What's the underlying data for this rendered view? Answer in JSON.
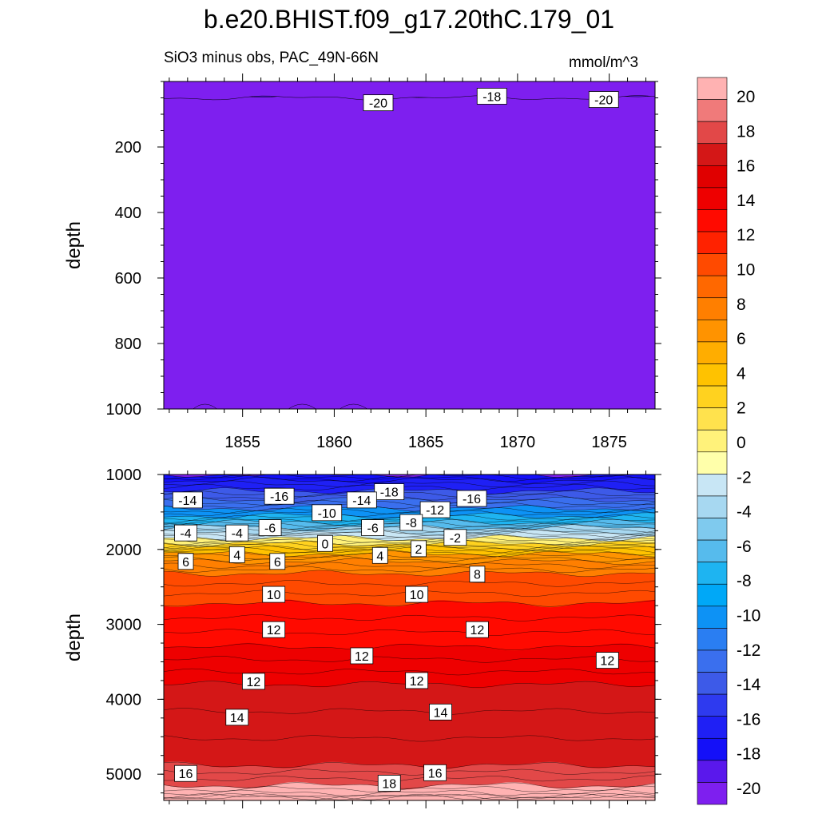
{
  "title": "b.e20.BHIST.f09_g17.20thC.179_01",
  "subtitle": "SiO3 minus obs, PAC_49N-66N",
  "units": "mmol/m^3",
  "colors": {
    "background": "#ffffff",
    "frame": "#000000"
  },
  "chart_data": [
    {
      "type": "contour",
      "panel": "top",
      "title": "SiO3 minus obs, PAC_49N-66N",
      "ylabel": "depth",
      "xlabel": "",
      "xlim": [
        1850.7,
        1877.5
      ],
      "ylim": [
        1000,
        0
      ],
      "y_inverted": true,
      "xticks": [
        1855,
        1860,
        1865,
        1870,
        1875
      ],
      "xtick_labels": [
        "1855",
        "1860",
        "1865",
        "1870",
        "1875"
      ],
      "yticks": [
        200,
        400,
        600,
        800,
        1000
      ],
      "ytick_labels": [
        "200",
        "400",
        "600",
        "800",
        "1000"
      ],
      "layers": [
        {
          "level": -20,
          "top": 0,
          "bottom": 1000,
          "note": "values at or below -20"
        },
        {
          "level": -18,
          "top": 0,
          "bottom": 55,
          "note": "thin band of -16 to -19 near surface"
        }
      ],
      "contour_labels": [
        {
          "x": 1862.4,
          "depth": 65,
          "text": "-20"
        },
        {
          "x": 1868.6,
          "depth": 45,
          "text": "-18"
        },
        {
          "x": 1874.7,
          "depth": 55,
          "text": "-20"
        }
      ]
    },
    {
      "type": "contour",
      "panel": "bottom",
      "ylabel": "depth",
      "xlabel": "",
      "xlim": [
        1850.7,
        1877.5
      ],
      "ylim": [
        5350,
        1000
      ],
      "y_inverted": true,
      "xticks": [
        1855,
        1860,
        1865,
        1870,
        1875
      ],
      "yticks": [
        1000,
        2000,
        3000,
        4000,
        5000
      ],
      "ytick_labels": [
        "1000",
        "2000",
        "3000",
        "4000",
        "5000"
      ],
      "level_depths": [
        {
          "level": -20,
          "depth": 1000
        },
        {
          "level": -18,
          "depth": 1080
        },
        {
          "level": -16,
          "depth": 1220
        },
        {
          "level": -14,
          "depth": 1340
        },
        {
          "level": -12,
          "depth": 1450
        },
        {
          "level": -10,
          "depth": 1550
        },
        {
          "level": -8,
          "depth": 1640
        },
        {
          "level": -6,
          "depth": 1710
        },
        {
          "level": -4,
          "depth": 1780
        },
        {
          "level": -2,
          "depth": 1850
        },
        {
          "level": 0,
          "depth": 1920
        },
        {
          "level": 2,
          "depth": 1985
        },
        {
          "level": 4,
          "depth": 2060
        },
        {
          "level": 6,
          "depth": 2160
        },
        {
          "level": 8,
          "depth": 2320
        },
        {
          "level": 10,
          "depth": 2720
        },
        {
          "level": 12,
          "depth": 3300
        },
        {
          "level": 14,
          "depth": 3800
        },
        {
          "level": 16,
          "depth": 4880
        },
        {
          "level": 18,
          "depth": 5150
        },
        {
          "level": 20,
          "depth": 5300
        }
      ],
      "contour_labels": [
        {
          "x": 1852.0,
          "depth": 1340,
          "text": "-14"
        },
        {
          "x": 1857.0,
          "depth": 1290,
          "text": "-16"
        },
        {
          "x": 1863.0,
          "depth": 1230,
          "text": "-18"
        },
        {
          "x": 1861.5,
          "depth": 1340,
          "text": "-14"
        },
        {
          "x": 1867.5,
          "depth": 1320,
          "text": "-16"
        },
        {
          "x": 1859.6,
          "depth": 1510,
          "text": "-10"
        },
        {
          "x": 1865.5,
          "depth": 1470,
          "text": "-12"
        },
        {
          "x": 1864.2,
          "depth": 1640,
          "text": "-8"
        },
        {
          "x": 1851.9,
          "depth": 1780,
          "text": "-4"
        },
        {
          "x": 1854.7,
          "depth": 1780,
          "text": "-4"
        },
        {
          "x": 1856.5,
          "depth": 1710,
          "text": "-6"
        },
        {
          "x": 1862.1,
          "depth": 1710,
          "text": "-6"
        },
        {
          "x": 1866.6,
          "depth": 1840,
          "text": "-2"
        },
        {
          "x": 1859.5,
          "depth": 1920,
          "text": "0"
        },
        {
          "x": 1864.6,
          "depth": 1990,
          "text": "2"
        },
        {
          "x": 1854.7,
          "depth": 2070,
          "text": "4"
        },
        {
          "x": 1862.5,
          "depth": 2080,
          "text": "4"
        },
        {
          "x": 1851.9,
          "depth": 2160,
          "text": "6"
        },
        {
          "x": 1856.9,
          "depth": 2160,
          "text": "6"
        },
        {
          "x": 1867.8,
          "depth": 2330,
          "text": "8"
        },
        {
          "x": 1856.7,
          "depth": 2600,
          "text": "10"
        },
        {
          "x": 1864.5,
          "depth": 2600,
          "text": "10"
        },
        {
          "x": 1856.7,
          "depth": 3070,
          "text": "12"
        },
        {
          "x": 1867.8,
          "depth": 3070,
          "text": "12"
        },
        {
          "x": 1861.5,
          "depth": 3420,
          "text": "12"
        },
        {
          "x": 1874.9,
          "depth": 3480,
          "text": "12"
        },
        {
          "x": 1855.6,
          "depth": 3760,
          "text": "12"
        },
        {
          "x": 1864.5,
          "depth": 3750,
          "text": "12"
        },
        {
          "x": 1854.7,
          "depth": 4240,
          "text": "14"
        },
        {
          "x": 1865.8,
          "depth": 4170,
          "text": "14"
        },
        {
          "x": 1851.9,
          "depth": 4990,
          "text": "16"
        },
        {
          "x": 1865.5,
          "depth": 4980,
          "text": "16"
        },
        {
          "x": 1863.0,
          "depth": 5120,
          "text": "18"
        }
      ]
    },
    {
      "type": "colorbar",
      "levels": [
        -20,
        -18,
        -16,
        -14,
        -12,
        -10,
        -8,
        -6,
        -4,
        -2,
        0,
        2,
        4,
        6,
        8,
        10,
        12,
        14,
        16,
        18,
        20
      ],
      "labels": [
        "20",
        "18",
        "16",
        "14",
        "12",
        "10",
        "8",
        "6",
        "4",
        "2",
        "0",
        "-2",
        "-4",
        "-6",
        "-8",
        "-10",
        "-12",
        "-14",
        "-16",
        "-18",
        "-20"
      ],
      "colors": [
        "#ffb2b2",
        "#f07a7a",
        "#e24848",
        "#d41717",
        "#e00000",
        "#ee0000",
        "#ff0a00",
        "#ff2200",
        "#ff4a00",
        "#ff6800",
        "#ff7f00",
        "#ff9300",
        "#ffad00",
        "#ffc200",
        "#ffd21f",
        "#ffe24d",
        "#fff27a",
        "#ffffaa",
        "#c8e6f5",
        "#a7d8f1",
        "#7fcaee",
        "#56bbed",
        "#1eb4f1",
        "#00a8f7",
        "#0d92f5",
        "#2a7ef2",
        "#3a6fee",
        "#3d5ae8",
        "#2e3aef",
        "#1f20f5",
        "#1410f8",
        "#5a18ec",
        "#7e1fef"
      ],
      "title": ""
    }
  ]
}
